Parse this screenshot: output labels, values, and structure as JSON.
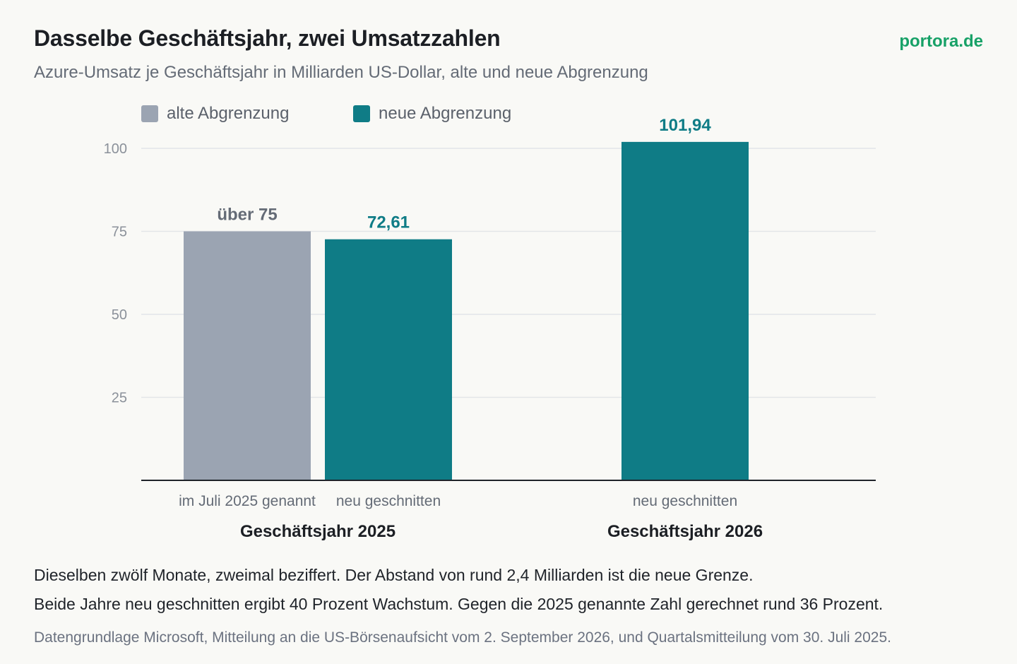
{
  "header": {
    "title": "Dasselbe Geschäftsjahr, zwei Umsatzzahlen",
    "subtitle": "Azure-Umsatz je Geschäftsjahr in Milliarden US-Dollar, alte und neue Abgrenzung",
    "brand": "portora.de"
  },
  "legend": {
    "items": [
      {
        "label": "alte Abgrenzung",
        "color": "#9ba4b2"
      },
      {
        "label": "neue Abgrenzung",
        "color": "#0f7c86"
      }
    ]
  },
  "chart_data": {
    "type": "bar",
    "ylim": [
      0,
      100
    ],
    "yticks": [
      25,
      50,
      75,
      100
    ],
    "grid": true,
    "legend_position": "top-left",
    "groups": [
      {
        "label": "Geschäftsjahr 2025",
        "bars": [
          {
            "series": "alte Abgrenzung",
            "sublabel": "im Juli 2025 genannt",
            "value": 75,
            "value_label": "über 75",
            "color": "#9ba4b2",
            "label_color": "#646b76"
          },
          {
            "series": "neue Abgrenzung",
            "sublabel": "neu geschnitten",
            "value": 72.61,
            "value_label": "72,61",
            "color": "#0f7c86",
            "label_color": "#0f7c86"
          }
        ]
      },
      {
        "label": "Geschäftsjahr 2026",
        "bars": [
          {
            "series": "neue Abgrenzung",
            "sublabel": "neu geschnitten",
            "value": 101.94,
            "value_label": "101,94",
            "color": "#0f7c86",
            "label_color": "#0f7c86"
          }
        ]
      }
    ]
  },
  "notes": {
    "line1": "Dieselben zwölf Monate, zweimal beziffert. Der Abstand von rund 2,4 Milliarden ist die neue Grenze.",
    "line2": "Beide Jahre neu geschnitten ergibt 40 Prozent Wachstum. Gegen die 2025 genannte Zahl gerechnet rund 36 Prozent."
  },
  "source": "Datengrundlage Microsoft, Mitteilung an die US-Börsenaufsicht vom 2. September 2026, und Quartalsmitteilung vom 30. Juli 2025."
}
